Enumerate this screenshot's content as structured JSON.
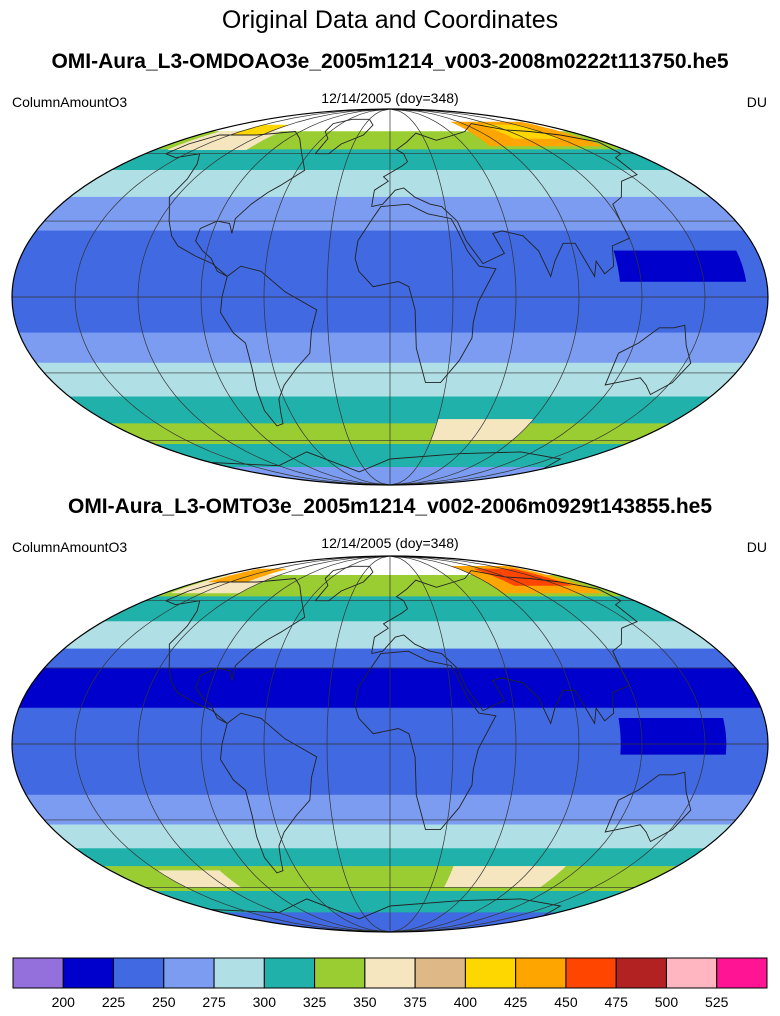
{
  "figure_title": "Original Data and Coordinates",
  "panels": [
    {
      "title": "OMI-Aura_L3-OMDOAO3e_2005m1214_v003-2008m0222t113750.he5",
      "left_label": "ColumnAmountO3",
      "center_label": "12/14/2005 (doy=348)",
      "right_label": "DU",
      "map": {
        "projection": "mollweide",
        "center_longitude": 0,
        "graticule": true,
        "coastlines": true,
        "bands": [
          {
            "lat_from": 90,
            "lat_to": 72,
            "color": "#ffffff"
          },
          {
            "lat_from": 72,
            "lat_to": 62,
            "color": "#9acd32"
          },
          {
            "lat_from": 62,
            "lat_to": 52,
            "color": "#20b2aa"
          },
          {
            "lat_from": 52,
            "lat_to": 40,
            "color": "#b0e0e6"
          },
          {
            "lat_from": 40,
            "lat_to": 26,
            "color": "#7b9cf0"
          },
          {
            "lat_from": 26,
            "lat_to": -14,
            "color": "#4169e1"
          },
          {
            "lat_from": -14,
            "lat_to": -26,
            "color": "#7b9cf0"
          },
          {
            "lat_from": -26,
            "lat_to": -40,
            "color": "#b0e0e6"
          },
          {
            "lat_from": -40,
            "lat_to": -52,
            "color": "#20b2aa"
          },
          {
            "lat_from": -52,
            "lat_to": -62,
            "color": "#9acd32"
          },
          {
            "lat_from": -62,
            "lat_to": -75,
            "color": "#20b2aa"
          },
          {
            "lat_from": -75,
            "lat_to": -90,
            "color": "#7b9cf0"
          }
        ],
        "patches": [
          {
            "lat_from": 78,
            "lat_to": 64,
            "lon_from": 80,
            "lon_to": 170,
            "color": "#ffa500"
          },
          {
            "lat_from": 76,
            "lat_to": 68,
            "lon_from": 110,
            "lon_to": 150,
            "color": "#ffd700"
          },
          {
            "lat_from": 72,
            "lat_to": 62,
            "lon_from": -170,
            "lon_to": -110,
            "color": "#f5e6c0"
          },
          {
            "lat_from": 76,
            "lat_to": 70,
            "lon_from": -150,
            "lon_to": -120,
            "color": "#ffd700"
          },
          {
            "lat_from": 18,
            "lat_to": 6,
            "lon_from": 110,
            "lon_to": 170,
            "color": "#0000cd"
          },
          {
            "lat_from": -50,
            "lat_to": -60,
            "lon_from": 30,
            "lon_to": 90,
            "color": "#f5e6c0"
          }
        ]
      }
    },
    {
      "title": "OMI-Aura_L3-OMTO3e_2005m1214_v002-2006m0929t143855.he5",
      "left_label": "ColumnAmountO3",
      "center_label": "12/14/2005 (doy=348)",
      "right_label": "DU",
      "map": {
        "projection": "mollweide",
        "center_longitude": 0,
        "graticule": true,
        "coastlines": true,
        "bands": [
          {
            "lat_from": 90,
            "lat_to": 74,
            "color": "#ffffff"
          },
          {
            "lat_from": 74,
            "lat_to": 62,
            "color": "#9acd32"
          },
          {
            "lat_from": 62,
            "lat_to": 50,
            "color": "#20b2aa"
          },
          {
            "lat_from": 50,
            "lat_to": 38,
            "color": "#b0e0e6"
          },
          {
            "lat_from": 38,
            "lat_to": 30,
            "color": "#4169e1"
          },
          {
            "lat_from": 30,
            "lat_to": 14,
            "color": "#0000cd"
          },
          {
            "lat_from": 14,
            "lat_to": -20,
            "color": "#4169e1"
          },
          {
            "lat_from": -20,
            "lat_to": -32,
            "color": "#7b9cf0"
          },
          {
            "lat_from": -32,
            "lat_to": -42,
            "color": "#b0e0e6"
          },
          {
            "lat_from": -42,
            "lat_to": -50,
            "color": "#20b2aa"
          },
          {
            "lat_from": -50,
            "lat_to": -62,
            "color": "#9acd32"
          },
          {
            "lat_from": -62,
            "lat_to": -74,
            "color": "#20b2aa"
          },
          {
            "lat_from": -74,
            "lat_to": -90,
            "color": "#4169e1"
          }
        ],
        "patches": [
          {
            "lat_from": 80,
            "lat_to": 64,
            "lon_from": 90,
            "lon_to": 170,
            "color": "#ffa500"
          },
          {
            "lat_from": 78,
            "lat_to": 68,
            "lon_from": 110,
            "lon_to": 160,
            "color": "#ff4500"
          },
          {
            "lat_from": 74,
            "lat_to": 64,
            "lon_from": -175,
            "lon_to": -120,
            "color": "#f5e6c0"
          },
          {
            "lat_from": 78,
            "lat_to": 70,
            "lon_from": -170,
            "lon_to": -135,
            "color": "#ffa500"
          },
          {
            "lat_from": 10,
            "lat_to": -4,
            "lon_from": 110,
            "lon_to": 160,
            "color": "#0000cd"
          },
          {
            "lat_from": -50,
            "lat_to": -60,
            "lon_from": 40,
            "lon_to": 110,
            "color": "#f5e6c0"
          },
          {
            "lat_from": -52,
            "lat_to": -60,
            "lon_from": -150,
            "lon_to": -110,
            "color": "#f5e6c0"
          }
        ]
      }
    }
  ],
  "colorbar": {
    "colors": [
      "#9370db",
      "#0000cd",
      "#4169e1",
      "#7b9cf0",
      "#b0e0e6",
      "#20b2aa",
      "#9acd32",
      "#f5e6c0",
      "#deb887",
      "#ffd700",
      "#ffa500",
      "#ff4500",
      "#b22222",
      "#ffb6c1",
      "#ff1493"
    ],
    "labels": [
      "200",
      "225",
      "250",
      "275",
      "300",
      "325",
      "350",
      "375",
      "400",
      "425",
      "450",
      "475",
      "500",
      "525"
    ]
  }
}
